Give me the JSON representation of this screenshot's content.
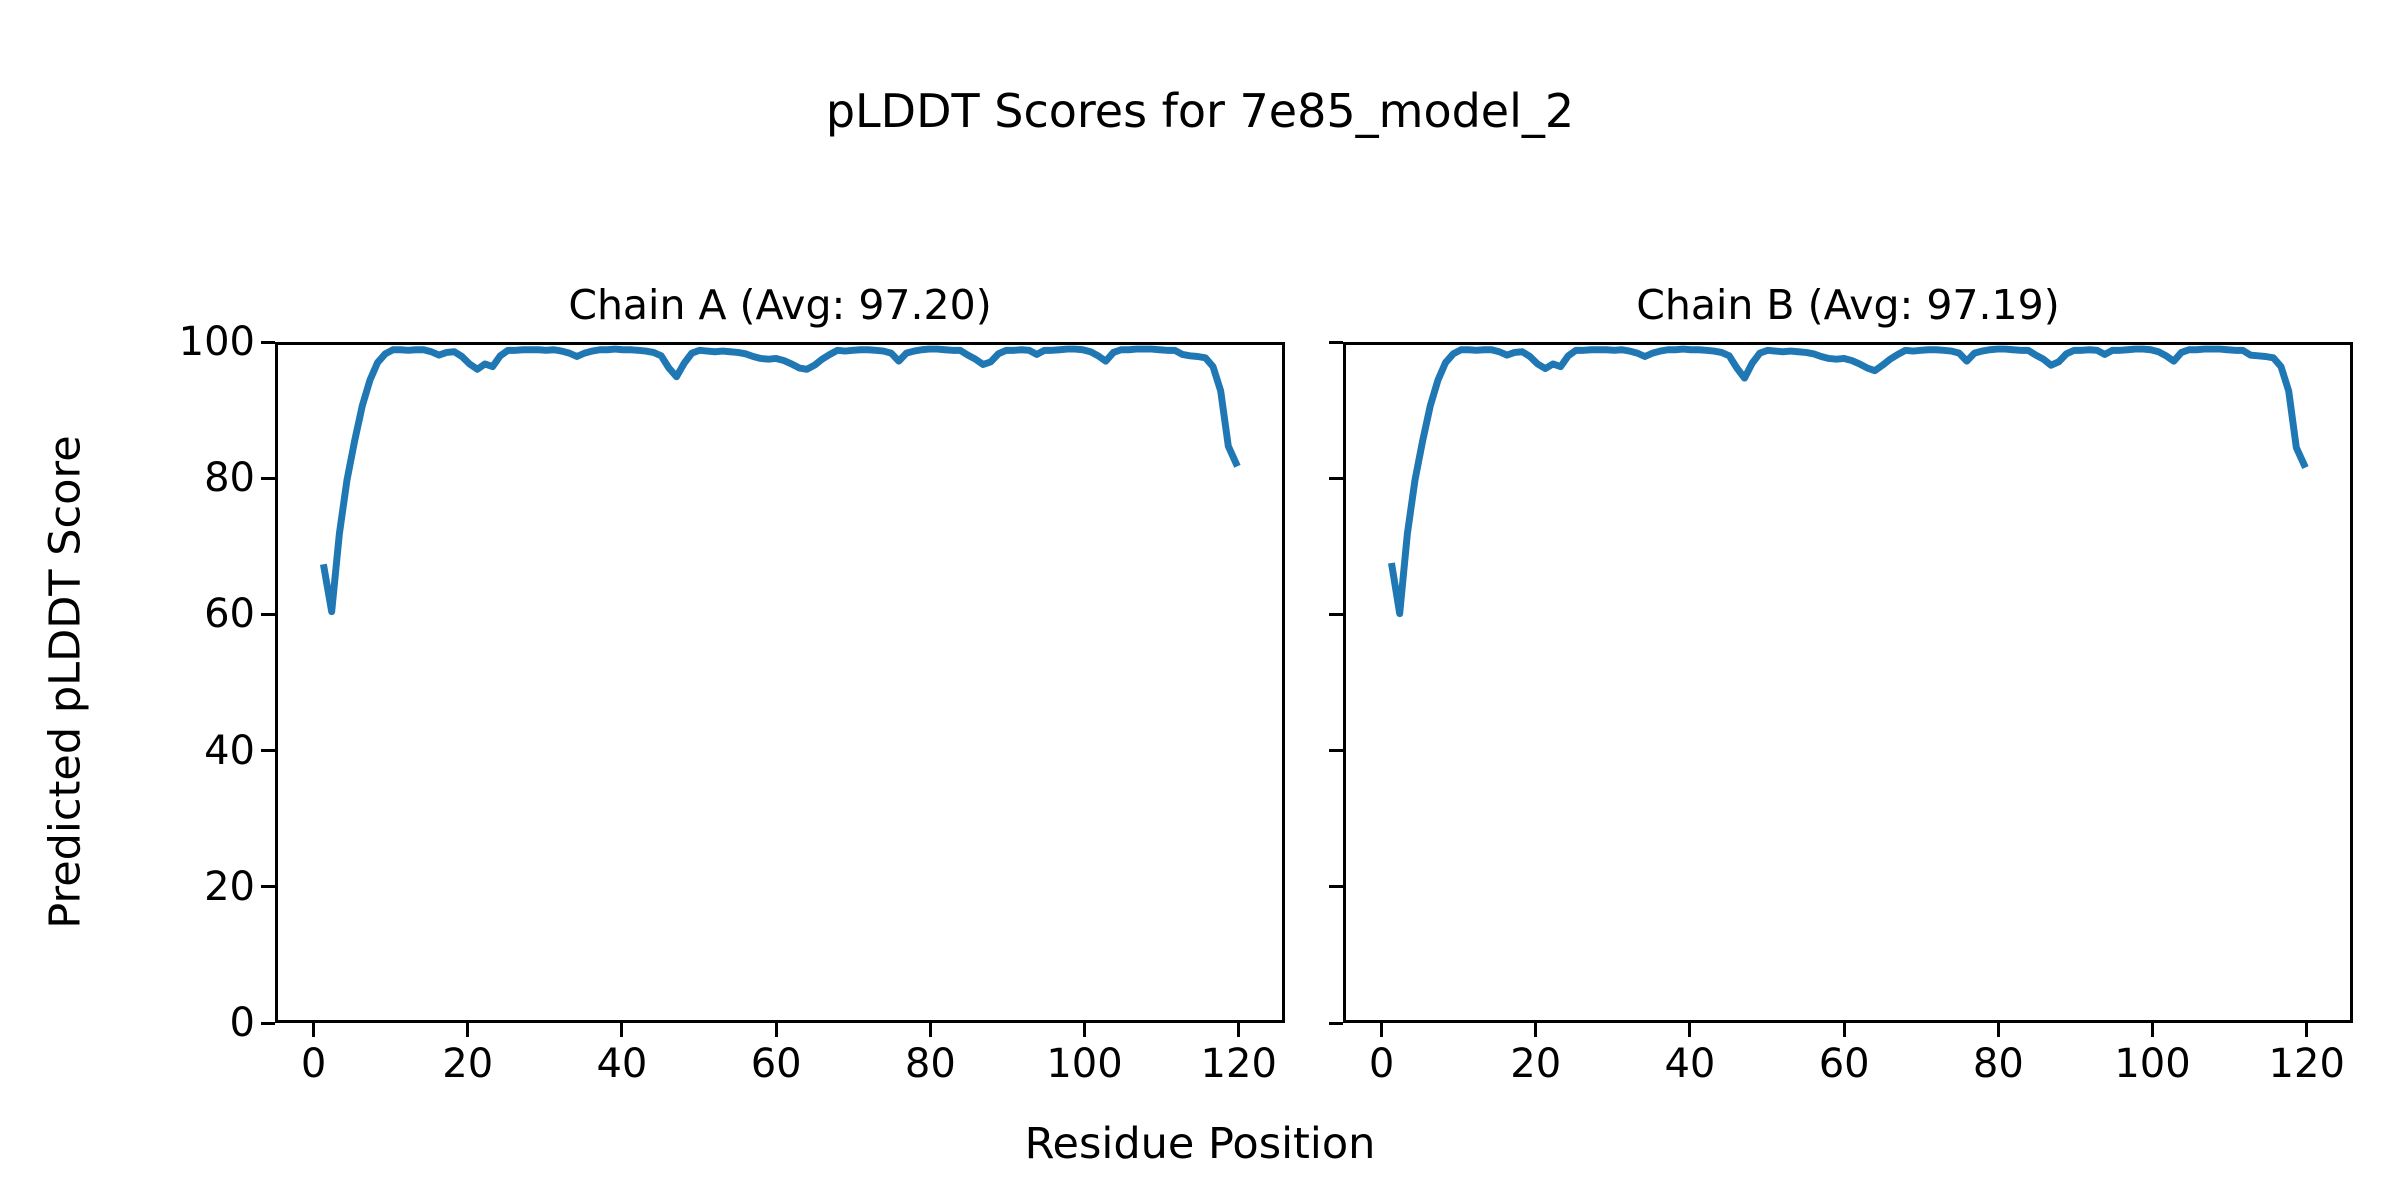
{
  "figure": {
    "suptitle": "pLDDT Scores for 7e85_model_2",
    "xlabel": "Residue Position",
    "ylabel": "Predicted pLDDT Score",
    "background_color": "#ffffff",
    "text_color": "#000000",
    "spine_color": "#000000"
  },
  "chart_data": [
    {
      "type": "line",
      "title": "Chain A (Avg: 97.20)",
      "chain": "A",
      "average_plddt": 97.2,
      "line_color": "#1f77b4",
      "x_start": 1,
      "x_step": 1,
      "x_ticks": [
        0,
        20,
        40,
        60,
        80,
        100,
        120
      ],
      "y_ticks": [
        0,
        20,
        40,
        60,
        80,
        100
      ],
      "xlim": [
        -5.0,
        126.0
      ],
      "ylim": [
        0,
        100
      ],
      "y_tick_labels_shown": true,
      "grid": false,
      "legend": "none",
      "y": [
        67.0,
        60.5,
        72.0,
        80.0,
        85.8,
        91.0,
        94.8,
        97.4,
        98.7,
        99.3,
        99.3,
        99.2,
        99.3,
        99.3,
        99.0,
        98.5,
        98.9,
        99.0,
        98.3,
        97.2,
        96.4,
        97.2,
        96.8,
        98.4,
        99.2,
        99.2,
        99.3,
        99.3,
        99.3,
        99.2,
        99.3,
        99.1,
        98.8,
        98.3,
        98.8,
        99.1,
        99.3,
        99.3,
        99.4,
        99.3,
        99.3,
        99.2,
        99.1,
        98.9,
        98.4,
        96.6,
        95.3,
        97.3,
        98.8,
        99.2,
        99.1,
        99.0,
        99.1,
        99.0,
        98.9,
        98.7,
        98.3,
        98.0,
        97.9,
        98.0,
        97.7,
        97.2,
        96.6,
        96.4,
        97.0,
        97.9,
        98.6,
        99.2,
        99.1,
        99.2,
        99.3,
        99.3,
        99.2,
        99.1,
        98.8,
        97.6,
        98.8,
        99.1,
        99.3,
        99.4,
        99.4,
        99.3,
        99.2,
        99.2,
        98.5,
        97.9,
        97.1,
        97.5,
        98.7,
        99.2,
        99.2,
        99.3,
        99.2,
        98.6,
        99.2,
        99.2,
        99.3,
        99.4,
        99.4,
        99.3,
        99.0,
        98.4,
        97.6,
        98.9,
        99.3,
        99.3,
        99.4,
        99.4,
        99.4,
        99.3,
        99.2,
        99.2,
        98.6,
        98.4,
        98.3,
        98.1,
        96.8,
        93.2,
        85.0,
        82.5
      ]
    },
    {
      "type": "line",
      "title": "Chain B (Avg: 97.19)",
      "chain": "B",
      "average_plddt": 97.19,
      "line_color": "#1f77b4",
      "x_start": 1,
      "x_step": 1,
      "x_ticks": [
        0,
        20,
        40,
        60,
        80,
        100,
        120
      ],
      "y_ticks": [
        0,
        20,
        40,
        60,
        80,
        100
      ],
      "xlim": [
        -5.0,
        126.0
      ],
      "ylim": [
        0,
        100
      ],
      "y_tick_labels_shown": false,
      "grid": false,
      "legend": "none",
      "y": [
        67.2,
        60.2,
        72.0,
        80.0,
        85.8,
        91.0,
        94.8,
        97.4,
        98.7,
        99.3,
        99.3,
        99.2,
        99.3,
        99.3,
        99.0,
        98.5,
        98.9,
        99.0,
        98.3,
        97.2,
        96.5,
        97.2,
        96.8,
        98.4,
        99.2,
        99.2,
        99.3,
        99.3,
        99.3,
        99.2,
        99.3,
        99.1,
        98.8,
        98.3,
        98.8,
        99.1,
        99.3,
        99.3,
        99.4,
        99.3,
        99.3,
        99.2,
        99.1,
        98.9,
        98.4,
        96.6,
        95.1,
        97.3,
        98.8,
        99.2,
        99.1,
        99.0,
        99.1,
        99.0,
        98.9,
        98.7,
        98.3,
        98.0,
        97.9,
        98.0,
        97.7,
        97.2,
        96.6,
        96.2,
        97.0,
        97.9,
        98.6,
        99.2,
        99.1,
        99.2,
        99.3,
        99.3,
        99.2,
        99.1,
        98.8,
        97.6,
        98.8,
        99.1,
        99.3,
        99.4,
        99.4,
        99.3,
        99.2,
        99.2,
        98.5,
        97.9,
        97.0,
        97.5,
        98.7,
        99.2,
        99.2,
        99.3,
        99.2,
        98.6,
        99.2,
        99.2,
        99.3,
        99.4,
        99.4,
        99.3,
        99.0,
        98.4,
        97.6,
        98.9,
        99.3,
        99.3,
        99.4,
        99.4,
        99.4,
        99.3,
        99.2,
        99.2,
        98.5,
        98.4,
        98.3,
        98.1,
        96.8,
        93.2,
        84.8,
        82.3
      ]
    }
  ]
}
